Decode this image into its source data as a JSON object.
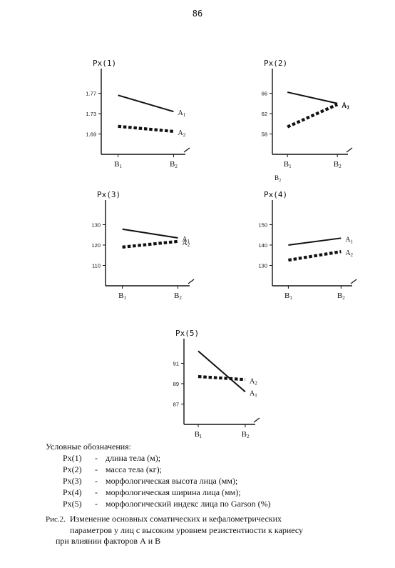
{
  "page": {
    "number": "86"
  },
  "chart_data": [
    {
      "type": "line",
      "ylabel": "Px(1)",
      "categories": [
        "B1",
        "B2"
      ],
      "yticks": [
        "1.77",
        "1.73",
        "1.69"
      ],
      "ylim": [
        1.65,
        1.81
      ],
      "series": [
        {
          "name": "A1",
          "values": [
            1.766,
            1.734
          ],
          "style": "solid"
        },
        {
          "name": "A2",
          "values": [
            1.705,
            1.695
          ],
          "style": "dotted"
        }
      ]
    },
    {
      "type": "line",
      "ylabel": "Px(2)",
      "categories": [
        "B1",
        "B2"
      ],
      "yticks": [
        "66",
        "62",
        "58"
      ],
      "ylim": [
        54,
        70
      ],
      "extra_label": "B2",
      "series": [
        {
          "name": "A1",
          "values": [
            66.2,
            64.0
          ],
          "style": "solid"
        },
        {
          "name": "A2",
          "values": [
            59.4,
            63.8
          ],
          "style": "dotted"
        }
      ]
    },
    {
      "type": "line",
      "ylabel": "Px(3)",
      "categories": [
        "B1",
        "B2"
      ],
      "yticks": [
        "130",
        "120",
        "110"
      ],
      "ylim": [
        100,
        140
      ],
      "series": [
        {
          "name": "A1",
          "values": [
            127.8,
            123.5
          ],
          "style": "solid"
        },
        {
          "name": "A2",
          "values": [
            119.0,
            121.8
          ],
          "style": "dotted"
        }
      ]
    },
    {
      "type": "line",
      "ylabel": "Px(4)",
      "categories": [
        "B1",
        "B2"
      ],
      "yticks": [
        "150",
        "140",
        "130"
      ],
      "ylim": [
        120,
        160
      ],
      "series": [
        {
          "name": "A1",
          "values": [
            140.0,
            143.4
          ],
          "style": "solid"
        },
        {
          "name": "A2",
          "values": [
            132.6,
            136.8
          ],
          "style": "dotted"
        }
      ]
    },
    {
      "type": "line",
      "ylabel": "Px(5)",
      "categories": [
        "B1",
        "B2"
      ],
      "yticks": [
        "91",
        "89",
        "87"
      ],
      "ylim": [
        85,
        93
      ],
      "series": [
        {
          "name": "A1",
          "values": [
            92.2,
            88.2
          ],
          "style": "solid"
        },
        {
          "name": "A2",
          "values": [
            89.7,
            89.4
          ],
          "style": "dotted"
        }
      ]
    }
  ],
  "legend": {
    "title": "Условные обозначения:",
    "items": [
      {
        "code": "Px(1)",
        "sep": "-",
        "desc": "длина тела (м);"
      },
      {
        "code": "Px(2)",
        "sep": "-",
        "desc": "масса тела (кг);"
      },
      {
        "code": "Px(3)",
        "sep": "-",
        "desc": "морфологическая высота лица (мм);"
      },
      {
        "code": "Px(4)",
        "sep": "-",
        "desc": "морфологическая ширина лица (мм);"
      },
      {
        "code": "Px(5)",
        "sep": "-",
        "desc": "морфологический индекс лица по Garson (%)"
      }
    ]
  },
  "caption": {
    "label": "Рис.2.",
    "line1": "Изменение основных соматических и кефалометрических",
    "line2": "параметров у лиц с высоким уровнем резистентности к кариесу",
    "line3": "при влиянии факторов А и В"
  }
}
